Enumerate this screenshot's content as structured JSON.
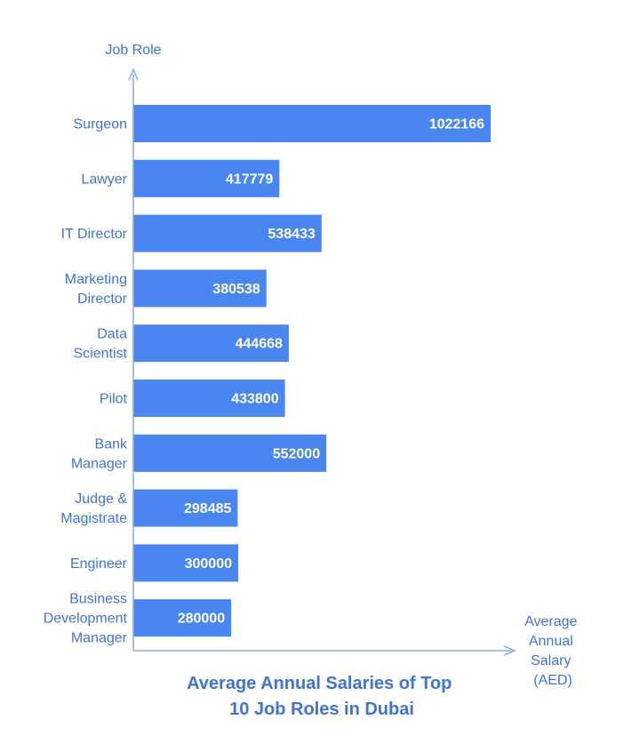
{
  "chart_data": {
    "type": "bar",
    "orientation": "horizontal",
    "title_lines": [
      "Average Annual Salaries of Top",
      "10 Job Roles in Dubai"
    ],
    "ylabel": "Job Role",
    "xlabel_lines": [
      "Average",
      "Annual",
      "Salary",
      "(AED)"
    ],
    "categories": [
      "Surgeon",
      "Lawyer",
      "IT Director",
      "Marketing Director",
      "Data Scientist",
      "Pilot",
      "Bank Manager",
      "Judge & Magistrate",
      "Engineer",
      "Business Development Manager"
    ],
    "category_lines": [
      [
        "Surgeon"
      ],
      [
        "Lawyer"
      ],
      [
        "IT Director"
      ],
      [
        "Marketing",
        "Director"
      ],
      [
        "Data",
        "Scientist"
      ],
      [
        "Pilot"
      ],
      [
        "Bank",
        "Manager"
      ],
      [
        "Judge &",
        "Magistrate"
      ],
      [
        "Engineer"
      ],
      [
        "Business",
        "Development",
        "Manager"
      ]
    ],
    "values": [
      1022166,
      417779,
      538433,
      380538,
      444668,
      433800,
      552000,
      298485,
      300000,
      280000
    ],
    "data_labels": [
      "1022166",
      "417779",
      "538433",
      "380538",
      "444668",
      "433800",
      "552000",
      "298485",
      "300000",
      "280000"
    ],
    "xlim": [
      0,
      1022166
    ],
    "grid": false,
    "legend": "none",
    "colors": {
      "bar": "#4a86f0",
      "axis": "#8fa9e0",
      "text": "#3f73d8",
      "value_text": "#ffffff"
    }
  }
}
